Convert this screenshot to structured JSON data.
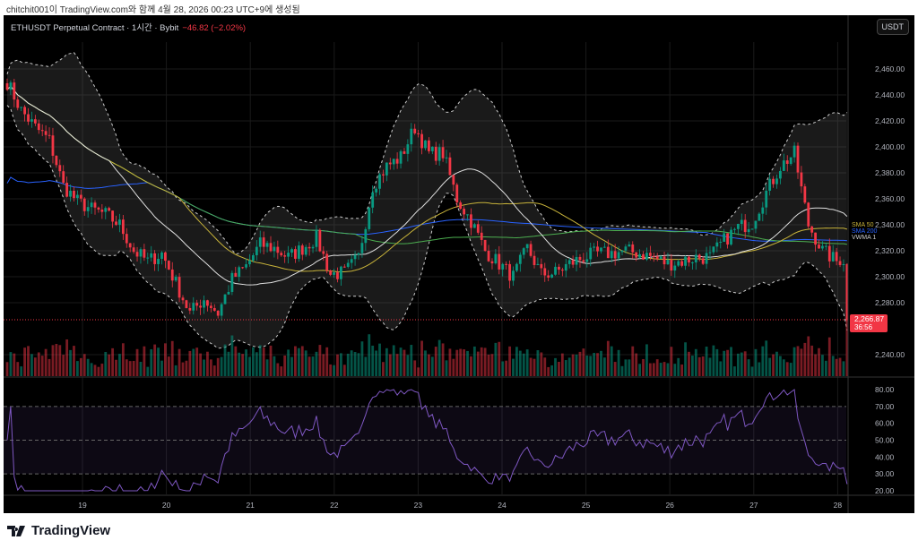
{
  "caption": "chitchit001이 TradingView.com와 함께 4월 28, 2026 00:23 UTC+9에 생성됨",
  "header": {
    "symbol": "ETHUSDT Perpetual Contract · 1시간 · Bybit",
    "change": "−46.82 (−2.02%)",
    "currency_button": "USDT"
  },
  "footer": {
    "brand": "TradingView"
  },
  "colors": {
    "up": "#089981",
    "down": "#f23645",
    "sma50": "#c8b33a",
    "sma200": "#2962ff",
    "vwma": "#e0e0e0",
    "sma_green": "#4caf50",
    "rsi": "#7e57c2"
  },
  "chart_data": {
    "type": "candlestick",
    "title": "ETHUSDT Perpetual Contract · 1시간 · Bybit",
    "interval": "1h",
    "closes_4h": [
      2450,
      2428,
      2415,
      2405,
      2370,
      2358,
      2352,
      2348,
      2340,
      2320,
      2312,
      2318,
      2295,
      2272,
      2283,
      2272,
      2298,
      2308,
      2325,
      2322,
      2315,
      2322,
      2330,
      2302,
      2303,
      2315,
      2370,
      2385,
      2392,
      2415,
      2395,
      2395,
      2360,
      2343,
      2320,
      2310,
      2300,
      2322,
      2302,
      2303,
      2310,
      2315,
      2318,
      2318,
      2320,
      2318,
      2315,
      2310,
      2312,
      2315,
      2315,
      2328,
      2338,
      2342,
      2365,
      2385,
      2395,
      2340,
      2320,
      2312
    ],
    "last_price": 2266.87,
    "last_price_label": "2,266.87",
    "countdown": "36:56",
    "ylim": [
      2230,
      2470
    ],
    "y_ticks": [
      "2,460.00",
      "2,440.00",
      "2,420.00",
      "2,400.00",
      "2,380.00",
      "2,360.00",
      "2,340.00",
      "2,320.00",
      "2,300.00",
      "2,280.00",
      "2,240.00"
    ],
    "y_tick_values": [
      2460,
      2440,
      2420,
      2400,
      2380,
      2360,
      2340,
      2320,
      2300,
      2280,
      2240
    ],
    "x_ticks": [
      "19",
      "20",
      "21",
      "22",
      "23",
      "24",
      "25",
      "26",
      "27",
      "28"
    ],
    "legend": [
      "SMA 50",
      "SMA 200",
      "VWMA 1"
    ],
    "indicators": [
      "Bollinger Bands 20",
      "SMA 50",
      "SMA 200",
      "VWMA",
      "Volume",
      "RSI 14"
    ],
    "rsi": {
      "ylim": [
        20,
        80
      ],
      "y_ticks": [
        "80.00",
        "70.00",
        "60.00",
        "50.00",
        "40.00",
        "30.00",
        "20.00"
      ],
      "y_tick_values": [
        80,
        70,
        60,
        50,
        40,
        30,
        20
      ],
      "overbought": 70,
      "oversold": 30,
      "last_value": 24
    }
  }
}
